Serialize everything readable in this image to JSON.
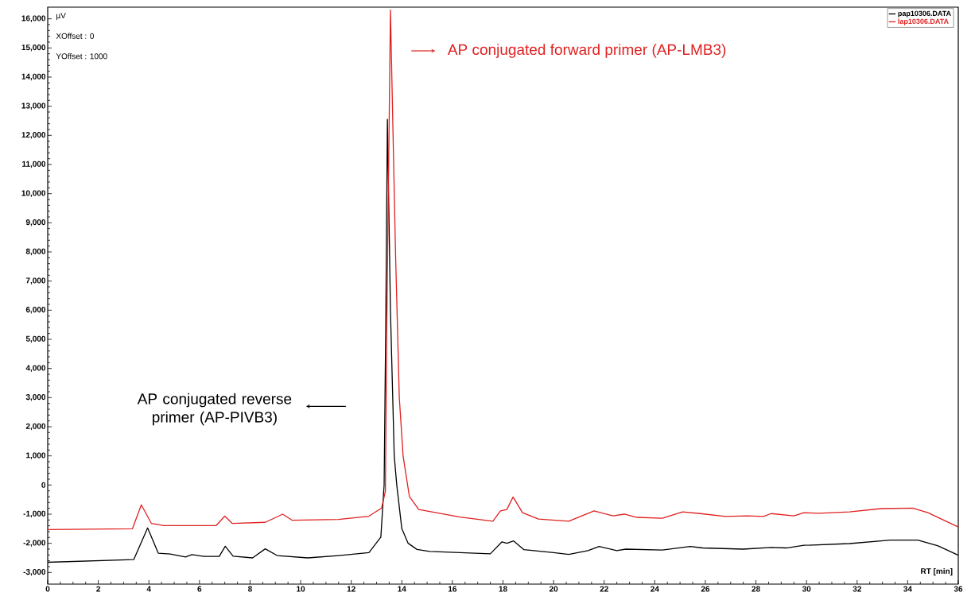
{
  "chart_data": {
    "type": "line",
    "xlabel": "RT [min]",
    "ylabel": "µV",
    "annotations": [
      "XOffset : 0",
      "YOffset : 1000",
      "AP conjugated forward primer (AP-LMB3)",
      "AP conjugated reverse primer (AP-PIVB3)"
    ],
    "xlim": [
      0,
      36
    ],
    "ylim": [
      -3400,
      16400
    ],
    "xticks": [
      0,
      2,
      4,
      6,
      8,
      10,
      12,
      14,
      16,
      18,
      20,
      22,
      24,
      26,
      28,
      30,
      32,
      34,
      36
    ],
    "yticks": [
      {
        "value": -3000,
        "label": "-3,000"
      },
      {
        "value": -2000,
        "label": "-2,000"
      },
      {
        "value": -1000,
        "label": "-1,000"
      },
      0,
      {
        "value": 1000,
        "label": "1,000"
      },
      {
        "value": 2000,
        "label": "2,000"
      },
      {
        "value": 3000,
        "label": "3,000"
      },
      {
        "value": 4000,
        "label": "4,000"
      },
      {
        "value": 5000,
        "label": "5,000"
      },
      {
        "value": 6000,
        "label": "6,000"
      },
      {
        "value": 7000,
        "label": "7,000"
      },
      {
        "value": 8000,
        "label": "8,000"
      },
      {
        "value": 9000,
        "label": "9,000"
      },
      {
        "value": 10000,
        "label": "10,000"
      },
      {
        "value": 11000,
        "label": "11,000"
      },
      {
        "value": 12000,
        "label": "12,000"
      },
      {
        "value": 13000,
        "label": "13,000"
      },
      {
        "value": 14000,
        "label": "14,000"
      },
      {
        "value": 15000,
        "label": "15,000"
      },
      {
        "value": 16000,
        "label": "16,000"
      }
    ],
    "grid": false,
    "legend": "top right",
    "marker": "none",
    "line_style": "solid",
    "series": [
      {
        "name": "pap10306.DATA",
        "color": "#000000",
        "x": [
          0,
          3.4,
          3.95,
          4.37,
          4.84,
          5.45,
          5.7,
          6.18,
          6.78,
          7.02,
          7.33,
          8.1,
          8.6,
          9.07,
          10.28,
          11.5,
          12.7,
          13.17,
          13.3,
          13.37,
          13.43,
          13.55,
          13.7,
          13.8,
          14.0,
          14.25,
          14.6,
          15.1,
          16.3,
          17.5,
          17.96,
          18.15,
          18.42,
          18.83,
          20,
          20.6,
          21.36,
          21.8,
          22.5,
          22.85,
          24.3,
          25.4,
          25.9,
          27.5,
          28.6,
          29.2,
          29.9,
          31.7,
          32.95,
          33.3,
          34.4,
          35.2,
          36
        ],
        "values": [
          -2650,
          -2560,
          -1470,
          -2340,
          -2370,
          -2470,
          -2390,
          -2450,
          -2450,
          -2100,
          -2440,
          -2500,
          -2190,
          -2420,
          -2500,
          -2420,
          -2320,
          -1790,
          0,
          6000,
          12550,
          6000,
          1000,
          0,
          -1500,
          -2000,
          -2210,
          -2280,
          -2320,
          -2360,
          -1950,
          -2000,
          -1920,
          -2220,
          -2320,
          -2380,
          -2250,
          -2110,
          -2250,
          -2200,
          -2230,
          -2110,
          -2160,
          -2200,
          -2140,
          -2160,
          -2070,
          -2010,
          -1920,
          -1890,
          -1890,
          -2090,
          -2410
        ]
      },
      {
        "name": "lap10306.DATA",
        "color": "#e02020",
        "x": [
          0,
          3.35,
          3.7,
          4.1,
          4.6,
          6.66,
          7.0,
          7.3,
          8.6,
          9.29,
          9.67,
          11.5,
          12.7,
          13.2,
          13.35,
          13.4,
          13.55,
          13.75,
          13.9,
          14.05,
          14.3,
          14.67,
          16.3,
          17.6,
          17.9,
          18.15,
          18.4,
          18.77,
          19.4,
          20.6,
          21.6,
          22.35,
          22.8,
          23.3,
          24.3,
          25.1,
          25.8,
          26.8,
          27.65,
          28.3,
          28.6,
          29.5,
          29.9,
          30.5,
          31.7,
          32.95,
          34.2,
          34.8,
          36
        ],
        "values": [
          -1530,
          -1500,
          -680,
          -1320,
          -1390,
          -1390,
          -1070,
          -1320,
          -1280,
          -1000,
          -1210,
          -1180,
          -1070,
          -790,
          -210,
          5000,
          16300,
          8000,
          3000,
          1000,
          -400,
          -840,
          -1100,
          -1240,
          -890,
          -840,
          -410,
          -950,
          -1170,
          -1240,
          -890,
          -1060,
          -1000,
          -1110,
          -1140,
          -920,
          -980,
          -1080,
          -1060,
          -1080,
          -980,
          -1060,
          -950,
          -970,
          -920,
          -810,
          -790,
          -950,
          -1440
        ]
      }
    ]
  }
}
